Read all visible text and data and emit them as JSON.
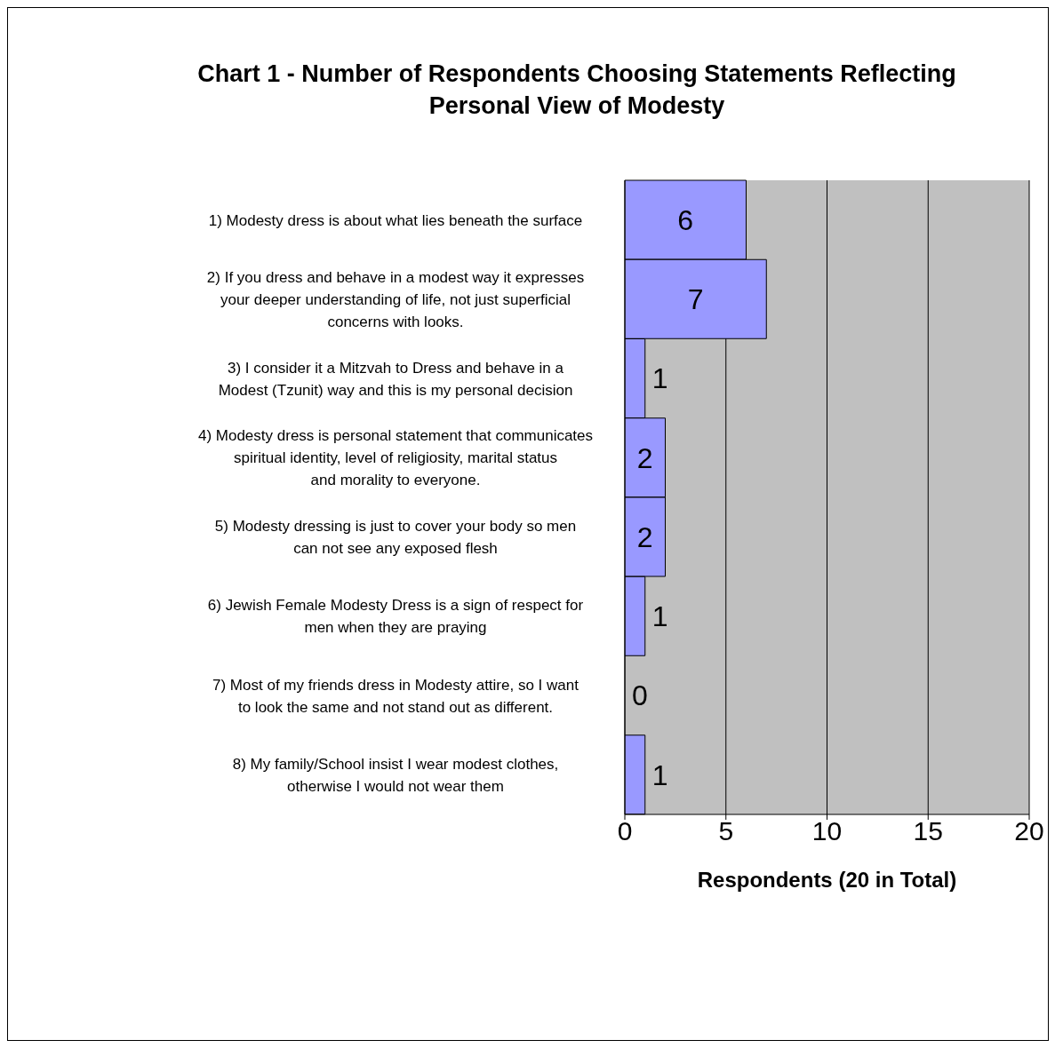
{
  "chart_data": {
    "type": "bar",
    "orientation": "horizontal",
    "title": "Chart 1 - Number of Respondents Choosing Statements Reflecting Personal View of Modesty",
    "xlabel": "Respondents (20 in Total)",
    "categories": [
      "1) Modesty dress is about what lies beneath the surface",
      "2) If you dress and behave in a modest way it expresses your deeper understanding of life, not just superficial concerns with looks.",
      "3) I consider it a Mitzvah to Dress and behave in a Modest (Tzunit) way and this is my personal decision",
      "4) Modesty dress is personal statement that communicates spiritual identity, level of religiosity, marital status and morality to everyone.",
      "5) Modesty dressing is just to cover your body so men can not see any exposed flesh",
      "6) Jewish Female Modesty Dress is a sign of respect for men when they are praying",
      "7) Most of my friends dress in Modesty attire, so I want to look the same and not stand out as different.",
      "8) My family/School insist I wear modest clothes, otherwise I would not wear them"
    ],
    "values": [
      6,
      7,
      1,
      2,
      2,
      1,
      0,
      1
    ],
    "color": "#9999ff",
    "xlim": [
      0,
      20
    ],
    "xticks": [
      0,
      5,
      10,
      15,
      20
    ],
    "grid": "x",
    "data_labels": true
  }
}
